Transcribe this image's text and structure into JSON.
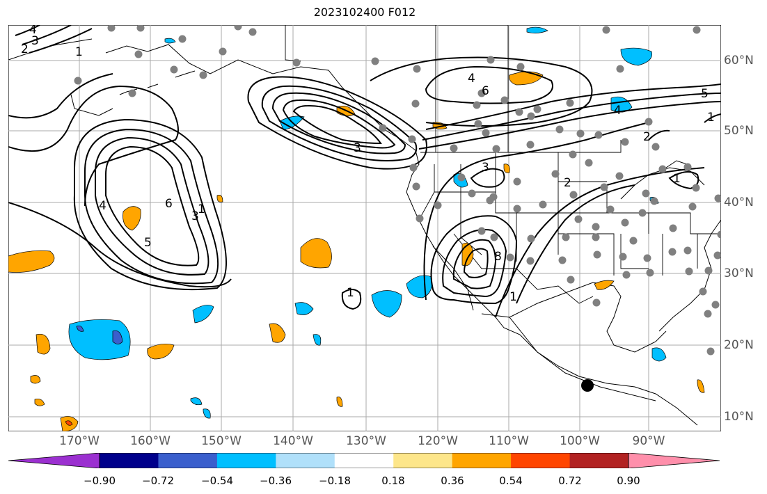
{
  "title": "2023102400 F012",
  "lon_ticks": [
    "170°W",
    "160°W",
    "150°W",
    "140°W",
    "130°W",
    "120°W",
    "110°W",
    "100°W",
    "90°W"
  ],
  "lat_ticks": [
    "60°N",
    "50°N",
    "40°N",
    "30°N",
    "20°N",
    "10°N"
  ],
  "contour_labels": [
    "4",
    "3",
    "2",
    "1",
    "4",
    "6",
    "5",
    "1",
    "3",
    "6",
    "4",
    "3",
    "3",
    "2",
    "5",
    "1",
    "2",
    "1",
    "1",
    "8",
    "1",
    "4"
  ],
  "colorbar": {
    "ticks": [
      "−0.90",
      "−0.72",
      "−0.54",
      "−0.36",
      "−0.18",
      "0.18",
      "0.36",
      "0.54",
      "0.72",
      "0.90"
    ],
    "colors": [
      "#9b30d0",
      "#00008b",
      "#3a5fcd",
      "#00bfff",
      "#b0e0fa",
      "#ffffff",
      "#fde68a",
      "#ffa500",
      "#ff4500",
      "#b22222",
      "#ff8fab"
    ]
  },
  "colors": {
    "negative_field": "#00bfff",
    "positive_field": "#ffa500",
    "station": "#808080",
    "marker": "#000000"
  }
}
